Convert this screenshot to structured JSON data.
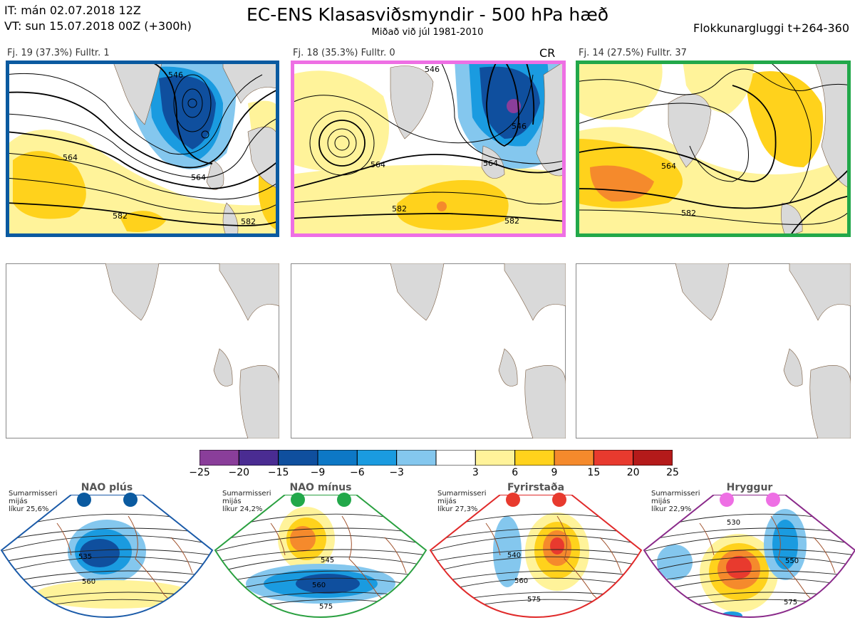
{
  "header": {
    "it_line": "IT: mán 02.07.2018 12Z",
    "vt_line": "VT: sun 15.07.2018 00Z  (+300h)",
    "title": "EC-ENS Klasasviðsmyndir - 500 hPa hæð",
    "subtitle": "Miðað við júl 1981-2010",
    "window": "Flokkunargluggi t+264-360"
  },
  "panels": [
    {
      "label": "Fj. 19 (37.3%)   Fulltr. 1",
      "border": "#0a5aa0",
      "contours": [
        "546",
        "564",
        "564",
        "582",
        "582"
      ]
    },
    {
      "label": "Fj. 18 (35.3%)   Fulltr. 0",
      "border": "#ee6fe4",
      "cr": "CR",
      "contours": [
        "546",
        "546",
        "564",
        "564",
        "582",
        "582"
      ]
    },
    {
      "label": "Fj. 14 (27.5%)   Fulltr. 37",
      "border": "#22a84a",
      "contours": [
        "564",
        "582"
      ]
    }
  ],
  "colorbar": {
    "colors": [
      "#8a3e9a",
      "#4a2c92",
      "#0f4f9e",
      "#0d78c6",
      "#1a9be0",
      "#84c7ee",
      "#ffffff",
      "#fff39a",
      "#ffd21c",
      "#f58a2c",
      "#e83a2e",
      "#b41a1a"
    ],
    "labels": [
      "−25",
      "−20",
      "−15",
      "−9",
      "−6",
      "−3",
      "3",
      "6",
      "9",
      "15",
      "20",
      "25"
    ]
  },
  "regimes": [
    {
      "title": "NAO plús",
      "note": [
        "Sumarmisseri",
        "mijás",
        "líkur 25,6%"
      ],
      "dot": "#0a5aa0",
      "border": "#1a5aa8",
      "labels": [
        "535",
        "560"
      ]
    },
    {
      "title": "NAO mínus",
      "note": [
        "Sumarmisseri",
        "mijás",
        "líkur 24,2%"
      ],
      "dot": "#22a84a",
      "border": "#2aa040",
      "labels": [
        "545",
        "560",
        "575"
      ]
    },
    {
      "title": "Fyrirstaða",
      "note": [
        "Sumarmisseri",
        "mijás",
        "líkur 27,3%"
      ],
      "dot": "#e83a2e",
      "border": "#e02a2a",
      "labels": [
        "540",
        "560",
        "575"
      ]
    },
    {
      "title": "Hryggur",
      "note": [
        "Sumarmisseri",
        "mijás",
        "líkur 22,9%"
      ],
      "dot": "#ee6fe4",
      "border": "#8a2a8a",
      "labels": [
        "530",
        "550",
        "575"
      ]
    }
  ]
}
